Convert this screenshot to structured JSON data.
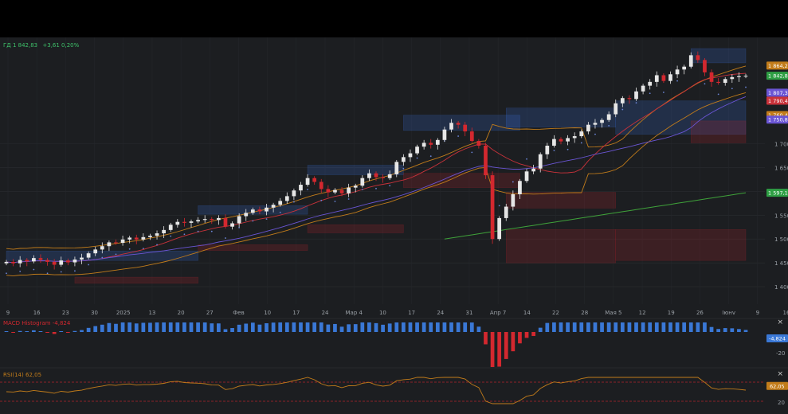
{
  "header": {
    "symbol": "ГД 1 842,83",
    "change": "+3,61 0,20%"
  },
  "colors": {
    "up": "#e6e6e6",
    "down": "#d3282f",
    "bb": "#c27c1a",
    "ma_red": "#c9323a",
    "ma_purple": "#6a55d4",
    "ma_green": "#3fa23a",
    "sar": "#6b86d8",
    "macd_pos": "#3a78d6",
    "macd_neg": "#d3282f",
    "rsi": "#c27c1a"
  },
  "price_axis": {
    "ticks": [
      "1 400",
      "1 450",
      "1 500",
      "1 550",
      "1 600",
      "1 650",
      "1 700"
    ],
    "badges": [
      {
        "text": "1 864,2",
        "value": 1864.2,
        "color": "#c27c1a"
      },
      {
        "text": "1 842,83",
        "value": 1842.83,
        "color": "#2e9f44"
      },
      {
        "text": "1 807,38",
        "value": 1807.38,
        "color": "#6a55d4"
      },
      {
        "text": "1 790,45",
        "value": 1790.45,
        "color": "#c9323a"
      },
      {
        "text": "1 760,4",
        "value": 1760.4,
        "color": "#c27c1a"
      },
      {
        "text": "1 750,85",
        "value": 1750.85,
        "color": "#6a55d4"
      },
      {
        "text": "1 597,16",
        "value": 1597.16,
        "color": "#2e9f44"
      }
    ]
  },
  "time_axis": {
    "labels": [
      "9",
      "16",
      "23",
      "30",
      "2025",
      "13",
      "20",
      "27",
      "Фев",
      "10",
      "17",
      "24",
      "Мар 4",
      "10",
      "17",
      "24",
      "31",
      "Апр 7",
      "14",
      "22",
      "28",
      "Мая 5",
      "12",
      "19",
      "26",
      "Iюнv",
      "9",
      "16"
    ]
  },
  "macd": {
    "label": "MACD Histogram",
    "value": "-4,824",
    "badge": "-4,824",
    "tick": "-20"
  },
  "rsi": {
    "label": "RSI(14)",
    "value": "62,05",
    "badge": "62,05",
    "tick": "20"
  },
  "close_icon": "×",
  "chart_data": {
    "type": "candlestick",
    "y_range": [
      1375,
      1905
    ],
    "closes": [
      1452,
      1449,
      1456,
      1453,
      1460,
      1456,
      1452,
      1446,
      1455,
      1451,
      1457,
      1461,
      1470,
      1478,
      1485,
      1493,
      1492,
      1499,
      1503,
      1499,
      1504,
      1507,
      1512,
      1519,
      1530,
      1536,
      1534,
      1537,
      1540,
      1542,
      1540,
      1544,
      1526,
      1533,
      1548,
      1555,
      1562,
      1558,
      1566,
      1572,
      1580,
      1590,
      1602,
      1614,
      1628,
      1620,
      1605,
      1598,
      1603,
      1596,
      1608,
      1612,
      1628,
      1638,
      1630,
      1628,
      1636,
      1662,
      1672,
      1680,
      1694,
      1702,
      1698,
      1708,
      1730,
      1744,
      1740,
      1726,
      1706,
      1696,
      1634,
      1500,
      1544,
      1568,
      1594,
      1622,
      1642,
      1648,
      1678,
      1696,
      1710,
      1705,
      1712,
      1716,
      1726,
      1740,
      1744,
      1750,
      1762,
      1785,
      1796,
      1794,
      1810,
      1822,
      1830,
      1844,
      1832,
      1846,
      1856,
      1862,
      1886,
      1876,
      1850,
      1830,
      1828,
      1836,
      1840,
      1842,
      1842.8
    ],
    "bollinger_upper_last": 1864.2,
    "bollinger_lower_last": 1760.4,
    "ma_red_last": 1790.45,
    "ma_purple_last": 1807.38,
    "ma_purple2_last": 1750.85,
    "ma_green_last": 1597.16,
    "macd_histogram_last": -4.824,
    "rsi_last": 62.05,
    "rsi_levels": [
      30,
      70
    ]
  }
}
